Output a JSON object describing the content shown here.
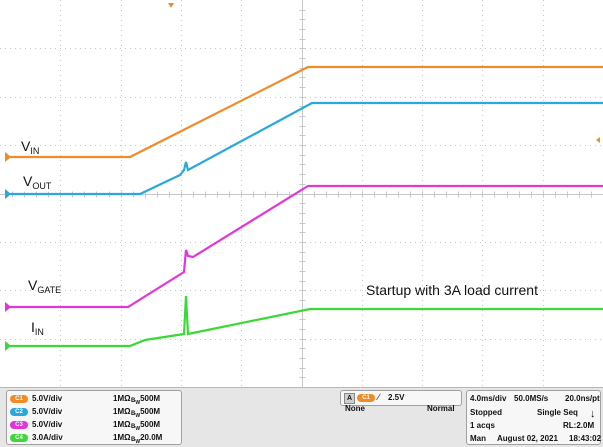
{
  "labels": {
    "vin_main": "V",
    "vin_sub": "IN",
    "vout_main": "V",
    "vout_sub": "OUT",
    "vgate_main": "V",
    "vgate_sub": "GATE",
    "iin_main": "I",
    "iin_sub": "IN",
    "annotation": "Startup with 3A load current"
  },
  "colors": {
    "vin": "#f08c28",
    "vout": "#28a8dc",
    "vgate": "#e038d8",
    "iin": "#3cd838",
    "grid": "#c8c8c8",
    "background": "#ffffff"
  },
  "channels": [
    {
      "id": "C1",
      "scale": "5.0V/div",
      "impedance": "1MΩ",
      "bw": "500M",
      "color": "#f08c28"
    },
    {
      "id": "C2",
      "scale": "5.0V/div",
      "impedance": "1MΩ",
      "bw": "500M",
      "color": "#28a8dc"
    },
    {
      "id": "C3",
      "scale": "5.0V/div",
      "impedance": "1MΩ",
      "bw": "500M",
      "color": "#e038d8"
    },
    {
      "id": "C4",
      "scale": "3.0A/div",
      "impedance": "1MΩ",
      "bw": "20.0M",
      "color": "#3cd838"
    }
  ],
  "trigger": {
    "source_label": "A",
    "channel": "C1",
    "level": "2.5V",
    "type": "None",
    "mode": "Normal"
  },
  "horizontal": {
    "timebase": "4.0ms/div",
    "sample_rate": "50.0MS/s",
    "resolution": "20.0ns/pt",
    "state": "Stopped",
    "sequence": "Single Seq",
    "acqs": "1 acqs",
    "record_length": "RL:2.0M",
    "user": "Man",
    "date": "August 02, 2021",
    "time": "18:43:02"
  }
}
